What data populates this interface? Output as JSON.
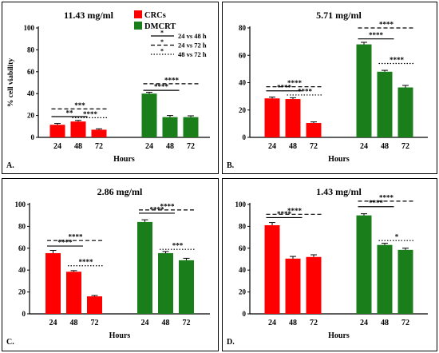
{
  "legend": {
    "entries": [
      {
        "label": "CRCs",
        "color": "#ff0000"
      },
      {
        "label": "DMCRT",
        "color": "#1a7f1a"
      }
    ],
    "lines": [
      {
        "label": "24 vs 48 h",
        "style": "solid"
      },
      {
        "label": "24 vs 72 h",
        "style": "dashed"
      },
      {
        "label": "48 vs 72 h",
        "style": "dotted"
      }
    ]
  },
  "colors": {
    "crc": "#ff0000",
    "dmcrt": "#1a7f1a"
  },
  "chart_data": [
    {
      "type": "bar",
      "panel_label": "A.",
      "title": "11.43 mg/ml",
      "xlabel": "Hours",
      "ylabel": "% cell viability",
      "ylim": [
        0,
        100
      ],
      "yticks": [
        0,
        20,
        40,
        60,
        80,
        100
      ],
      "categories": [
        "24",
        "48",
        "72"
      ],
      "series": [
        {
          "group": "CRCs",
          "values": [
            11.5,
            14.5,
            7
          ],
          "errors": [
            1.2,
            1.0,
            0.8
          ]
        },
        {
          "group": "DMCRT",
          "values": [
            40,
            18.5,
            18.5
          ],
          "errors": [
            1.2,
            1.5,
            1.2
          ]
        }
      ],
      "significance": [
        {
          "group": 0,
          "from": 0,
          "to": 1,
          "style": "solid",
          "label": "**",
          "y": 19
        },
        {
          "group": 0,
          "from": 0,
          "to": 2,
          "style": "dashed",
          "label": "***",
          "y": 26
        },
        {
          "group": 0,
          "from": 1,
          "to": 2,
          "style": "dotted",
          "label": "****",
          "y": 18
        },
        {
          "group": 1,
          "from": 0,
          "to": 1,
          "style": "solid",
          "label": "****",
          "y": 43
        },
        {
          "group": 1,
          "from": 0,
          "to": 2,
          "style": "dashed",
          "label": "****",
          "y": 49
        }
      ]
    },
    {
      "type": "bar",
      "panel_label": "B.",
      "title": "5.71 mg/ml",
      "xlabel": "Hours",
      "ylabel": "",
      "ylim": [
        0,
        80
      ],
      "yticks": [
        0,
        20,
        40,
        60,
        80
      ],
      "categories": [
        "24",
        "48",
        "72"
      ],
      "series": [
        {
          "group": "CRCs",
          "values": [
            28.5,
            28,
            10.5
          ],
          "errors": [
            1.0,
            1.0,
            0.8
          ]
        },
        {
          "group": "DMCRT",
          "values": [
            68,
            48,
            36.5
          ],
          "errors": [
            1.5,
            1.0,
            1.5
          ]
        }
      ],
      "significance": [
        {
          "group": 0,
          "from": 0,
          "to": 1,
          "style": "solid",
          "label": "****",
          "y": 34
        },
        {
          "group": 0,
          "from": 0,
          "to": 2,
          "style": "dashed",
          "label": "****",
          "y": 37
        },
        {
          "group": 0,
          "from": 1,
          "to": 2,
          "style": "dotted",
          "label": "****",
          "y": 31
        },
        {
          "group": 1,
          "from": 0,
          "to": 1,
          "style": "solid",
          "label": "****",
          "y": 72
        },
        {
          "group": 1,
          "from": 0,
          "to": 2,
          "style": "dashed",
          "label": "****",
          "y": 80
        },
        {
          "group": 1,
          "from": 1,
          "to": 2,
          "style": "dotted",
          "label": "****",
          "y": 54
        }
      ]
    },
    {
      "type": "bar",
      "panel_label": "C.",
      "title": "2.86 mg/ml",
      "xlabel": "Hours",
      "ylabel": "",
      "ylim": [
        0,
        100
      ],
      "yticks": [
        0,
        20,
        40,
        60,
        80,
        100
      ],
      "categories": [
        "24",
        "48",
        "72"
      ],
      "series": [
        {
          "group": "CRCs",
          "values": [
            55.5,
            38.5,
            16
          ],
          "errors": [
            2.5,
            1.0,
            0.8
          ]
        },
        {
          "group": "DMCRT",
          "values": [
            84,
            55.5,
            49
          ],
          "errors": [
            2.0,
            1.5,
            1.8
          ]
        }
      ],
      "significance": [
        {
          "group": 0,
          "from": 0,
          "to": 1,
          "style": "solid",
          "label": "****",
          "y": 62
        },
        {
          "group": 0,
          "from": 0,
          "to": 2,
          "style": "dashed",
          "label": "****",
          "y": 67
        },
        {
          "group": 0,
          "from": 1,
          "to": 2,
          "style": "dotted",
          "label": "****",
          "y": 44
        },
        {
          "group": 1,
          "from": 0,
          "to": 1,
          "style": "solid",
          "label": "****",
          "y": 92
        },
        {
          "group": 1,
          "from": 0,
          "to": 2,
          "style": "dashed",
          "label": "****",
          "y": 95
        },
        {
          "group": 1,
          "from": 1,
          "to": 2,
          "style": "dotted",
          "label": "***",
          "y": 59
        }
      ]
    },
    {
      "type": "bar",
      "panel_label": "D.",
      "title": "1.43 mg/ml",
      "xlabel": "Hours",
      "ylabel": "",
      "ylim": [
        0,
        100
      ],
      "yticks": [
        0,
        20,
        40,
        60,
        80,
        100
      ],
      "categories": [
        "24",
        "48",
        "72"
      ],
      "series": [
        {
          "group": "CRCs",
          "values": [
            81,
            50.5,
            52
          ],
          "errors": [
            2.5,
            2.0,
            2.0
          ]
        },
        {
          "group": "DMCRT",
          "values": [
            90,
            63,
            58.5
          ],
          "errors": [
            1.5,
            1.5,
            1.5
          ]
        }
      ],
      "significance": [
        {
          "group": 0,
          "from": 0,
          "to": 1,
          "style": "solid",
          "label": "****",
          "y": 88
        },
        {
          "group": 0,
          "from": 0,
          "to": 2,
          "style": "dashed",
          "label": "****",
          "y": 91
        },
        {
          "group": 1,
          "from": 0,
          "to": 1,
          "style": "solid",
          "label": "****",
          "y": 98
        },
        {
          "group": 1,
          "from": 0,
          "to": 2,
          "style": "dashed",
          "label": "****",
          "y": 103
        },
        {
          "group": 1,
          "from": 1,
          "to": 2,
          "style": "dotted",
          "label": "*",
          "y": 67
        }
      ]
    }
  ]
}
